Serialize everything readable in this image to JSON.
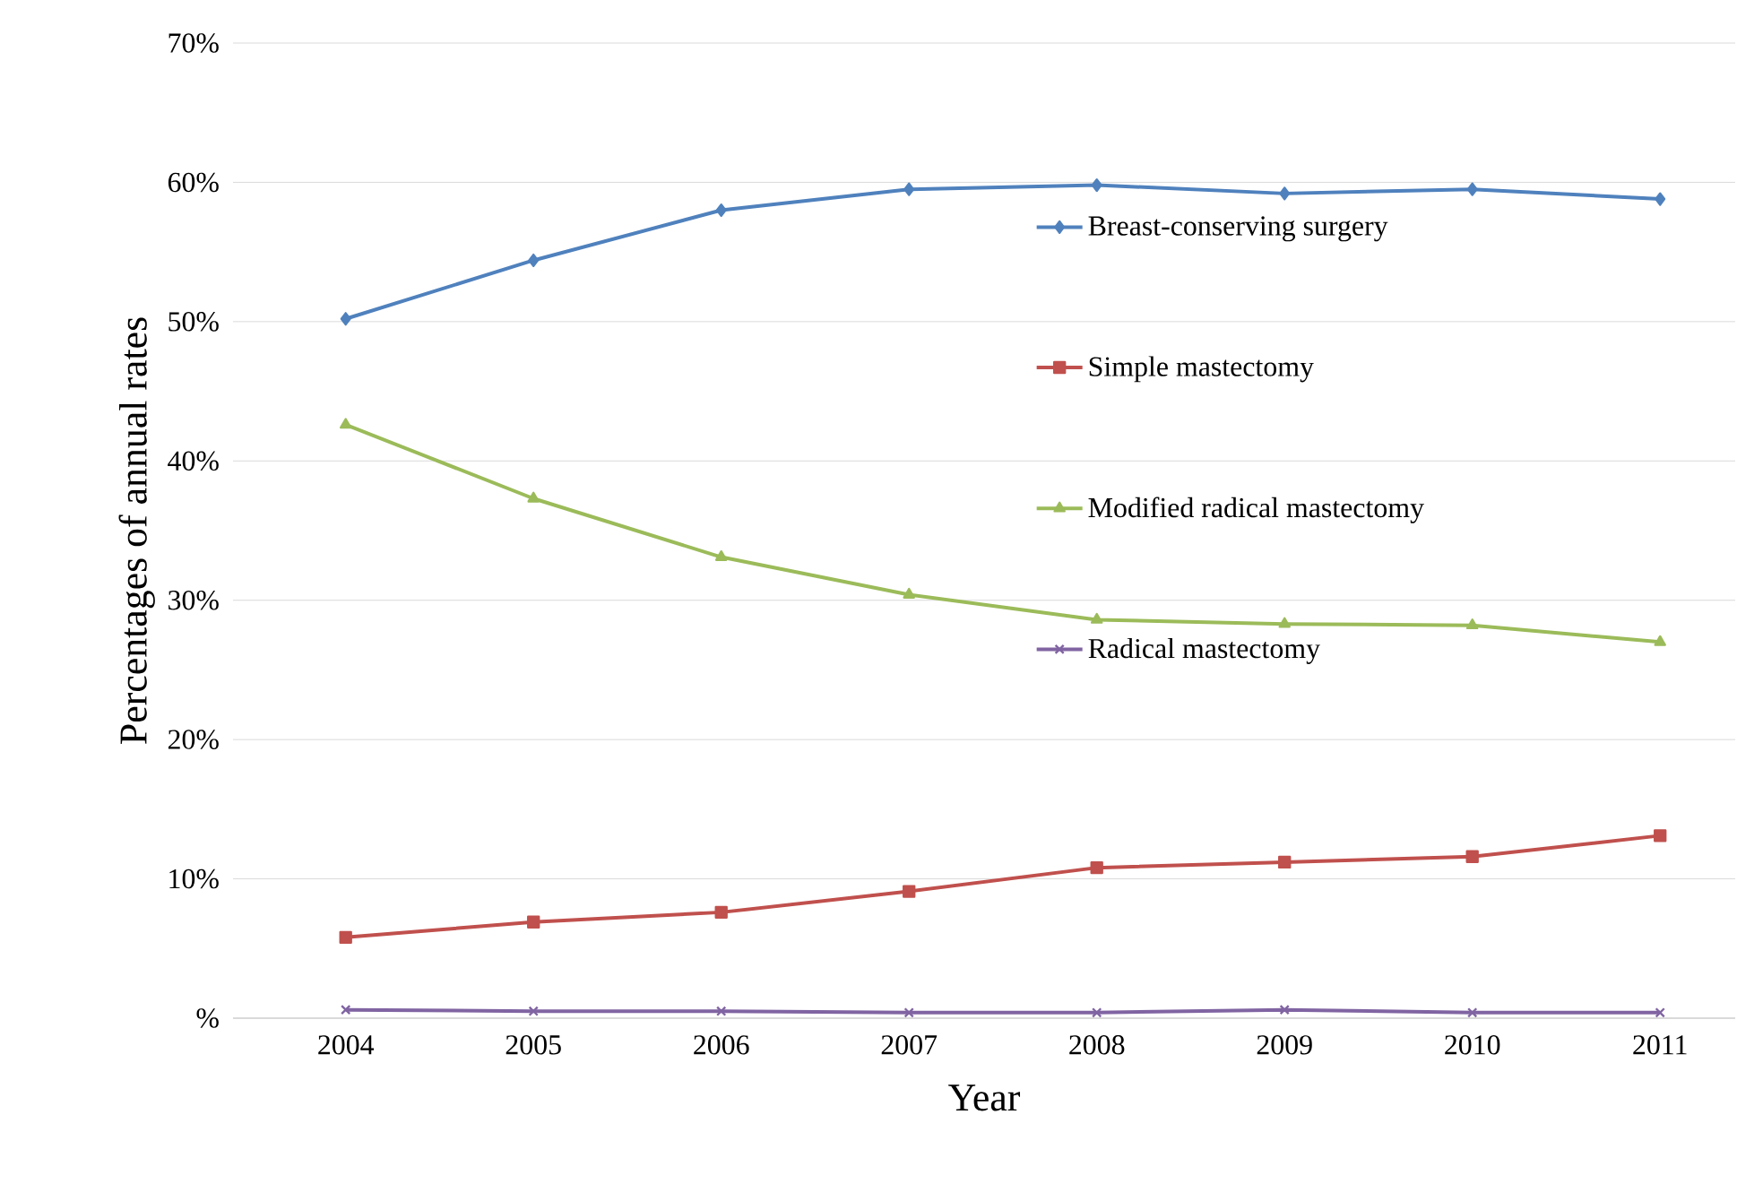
{
  "chart_data": {
    "type": "line",
    "xlabel": "Year",
    "ylabel": "Percentages of annual rates",
    "categories": [
      "2004",
      "2005",
      "2006",
      "2007",
      "2008",
      "2009",
      "2010",
      "2011"
    ],
    "series": [
      {
        "name": "Breast-conserving surgery",
        "color": "#4f81bd",
        "marker": "diamond",
        "values": [
          50.2,
          54.4,
          58.0,
          59.5,
          59.8,
          59.2,
          59.5,
          58.8
        ]
      },
      {
        "name": "Simple mastectomy",
        "color": "#c0504d",
        "marker": "square",
        "values": [
          5.8,
          6.9,
          7.6,
          9.1,
          10.8,
          11.2,
          11.6,
          13.1
        ]
      },
      {
        "name": "Modified radical mastectomy",
        "color": "#9bbb59",
        "marker": "triangle",
        "values": [
          42.6,
          37.3,
          33.1,
          30.4,
          28.6,
          28.3,
          28.2,
          27.0
        ]
      },
      {
        "name": "Radical mastectomy",
        "color": "#8064a2",
        "marker": "cross",
        "values": [
          0.6,
          0.5,
          0.5,
          0.4,
          0.4,
          0.6,
          0.4,
          0.4
        ]
      }
    ],
    "ylim": [
      0,
      70
    ],
    "yticks": [
      {
        "value": 0,
        "label": "%"
      },
      {
        "value": 10,
        "label": "10%"
      },
      {
        "value": 20,
        "label": "20%"
      },
      {
        "value": 30,
        "label": "30%"
      },
      {
        "value": 40,
        "label": "40%"
      },
      {
        "value": 50,
        "label": "50%"
      },
      {
        "value": 60,
        "label": "60%"
      },
      {
        "value": 70,
        "label": "70%"
      }
    ],
    "grid": "y",
    "legend": "right"
  }
}
